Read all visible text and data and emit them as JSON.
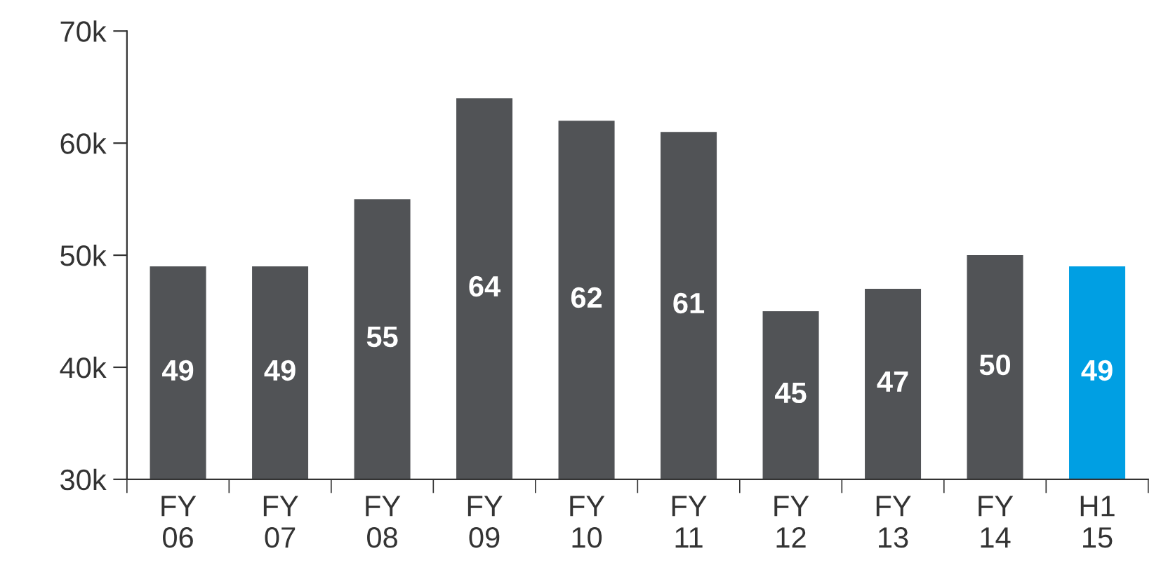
{
  "chart_data": {
    "type": "bar",
    "categories": [
      "FY\n06",
      "FY\n07",
      "FY\n08",
      "FY\n09",
      "FY\n10",
      "FY\n11",
      "FY\n12",
      "FY\n13",
      "FY\n14",
      "H1\n15"
    ],
    "values": [
      49,
      49,
      55,
      64,
      62,
      61,
      45,
      47,
      50,
      49
    ],
    "data_labels": true,
    "colors": [
      "#515356",
      "#515356",
      "#515356",
      "#515356",
      "#515356",
      "#515356",
      "#515356",
      "#515356",
      "#515356",
      "#009fe3"
    ],
    "ylim": [
      30,
      70
    ],
    "yticks": [
      {
        "value": 30,
        "label": "30k"
      },
      {
        "value": 40,
        "label": "40k"
      },
      {
        "value": 50,
        "label": "50k"
      },
      {
        "value": 60,
        "label": "60k"
      },
      {
        "value": 70,
        "label": "70k"
      }
    ],
    "grid": false,
    "legend": false
  }
}
